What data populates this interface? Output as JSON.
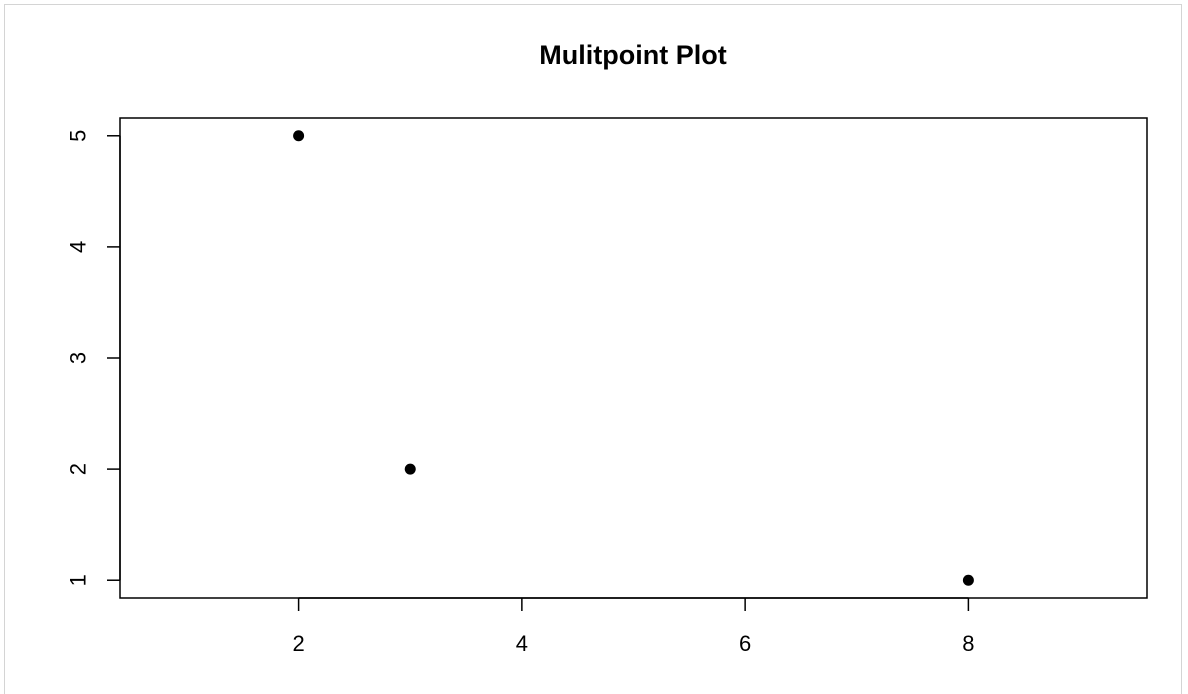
{
  "chart_data": {
    "type": "scatter",
    "title": "Mulitpoint Plot",
    "xlabel": "",
    "ylabel": "",
    "x": [
      2,
      3,
      8
    ],
    "y": [
      5,
      2,
      1
    ],
    "xlim": [
      0.4,
      9.6
    ],
    "ylim": [
      0.84,
      5.16
    ],
    "xticks": [
      2,
      4,
      6,
      8
    ],
    "yticks": [
      1,
      2,
      3,
      4,
      5
    ],
    "xtick_labels": [
      "2",
      "4",
      "6",
      "8"
    ],
    "ytick_labels": [
      "1",
      "2",
      "3",
      "4",
      "5"
    ],
    "grid": false,
    "marker_color": "#000000",
    "axis_color": "#000000"
  }
}
